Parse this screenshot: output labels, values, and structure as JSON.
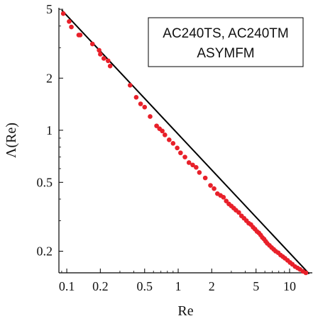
{
  "chart_data": {
    "type": "scatter",
    "title": "",
    "xlabel": "Re",
    "ylabel": "Λ(Re)",
    "x_scale": "log",
    "y_scale": "log",
    "xlim": [
      0.085,
      16
    ],
    "ylim": [
      0.15,
      5.1
    ],
    "grid": false,
    "legend_position": "top-right",
    "x_ticks": [
      0.1,
      0.2,
      0.5,
      1,
      2,
      5,
      10
    ],
    "x_tick_labels": [
      "0.1",
      "0.2",
      "0.5",
      "1",
      "2",
      "5",
      "10"
    ],
    "y_ticks": [
      0.2,
      0.5,
      1,
      2,
      5
    ],
    "y_tick_labels": [
      "0.2",
      "0.5",
      "1",
      "2",
      "5"
    ],
    "legend_lines": [
      "AC240TS, AC240TM",
      "ASYMFM"
    ],
    "colors": {
      "points": "#e8202a",
      "fit_line": "#000000",
      "axes": "#000000"
    },
    "series": [
      {
        "marker": "dot",
        "x": [
          0.093,
          0.105,
          0.11,
          0.128,
          0.132,
          0.17,
          0.195,
          0.2,
          0.215,
          0.235,
          0.245,
          0.37,
          0.42,
          0.46,
          0.5,
          0.56,
          0.64,
          0.68,
          0.72,
          0.76,
          0.83,
          0.9,
          0.98,
          1.05,
          1.15,
          1.25,
          1.35,
          1.45,
          1.55,
          1.75,
          1.95,
          2.1,
          2.25,
          2.4,
          2.55,
          2.7,
          2.85,
          3.0,
          3.15,
          3.3,
          3.5,
          3.7,
          3.9,
          4.1,
          4.3,
          4.5,
          4.7,
          4.9,
          5.1,
          5.3,
          5.5,
          5.7,
          5.9,
          6.1,
          6.3,
          6.6,
          6.9,
          7.2,
          7.5,
          7.9,
          8.3,
          8.7,
          9.1,
          9.6,
          10.1,
          10.6,
          11.2,
          11.8,
          12.4,
          13.2,
          14.0
        ],
        "y": [
          4.72,
          4.25,
          3.95,
          3.55,
          3.55,
          3.15,
          2.9,
          2.75,
          2.6,
          2.52,
          2.35,
          1.82,
          1.55,
          1.42,
          1.36,
          1.2,
          1.06,
          1.02,
          0.99,
          0.94,
          0.88,
          0.84,
          0.79,
          0.74,
          0.7,
          0.65,
          0.63,
          0.61,
          0.57,
          0.53,
          0.48,
          0.46,
          0.43,
          0.42,
          0.41,
          0.39,
          0.375,
          0.365,
          0.355,
          0.345,
          0.335,
          0.32,
          0.31,
          0.3,
          0.29,
          0.285,
          0.275,
          0.268,
          0.26,
          0.255,
          0.248,
          0.24,
          0.235,
          0.228,
          0.222,
          0.216,
          0.21,
          0.205,
          0.2,
          0.196,
          0.19,
          0.186,
          0.182,
          0.177,
          0.172,
          0.168,
          0.163,
          0.16,
          0.157,
          0.153,
          0.15
        ]
      }
    ],
    "fit_line": {
      "x": [
        0.09,
        15.0
      ],
      "y": [
        4.95,
        0.148
      ]
    }
  }
}
